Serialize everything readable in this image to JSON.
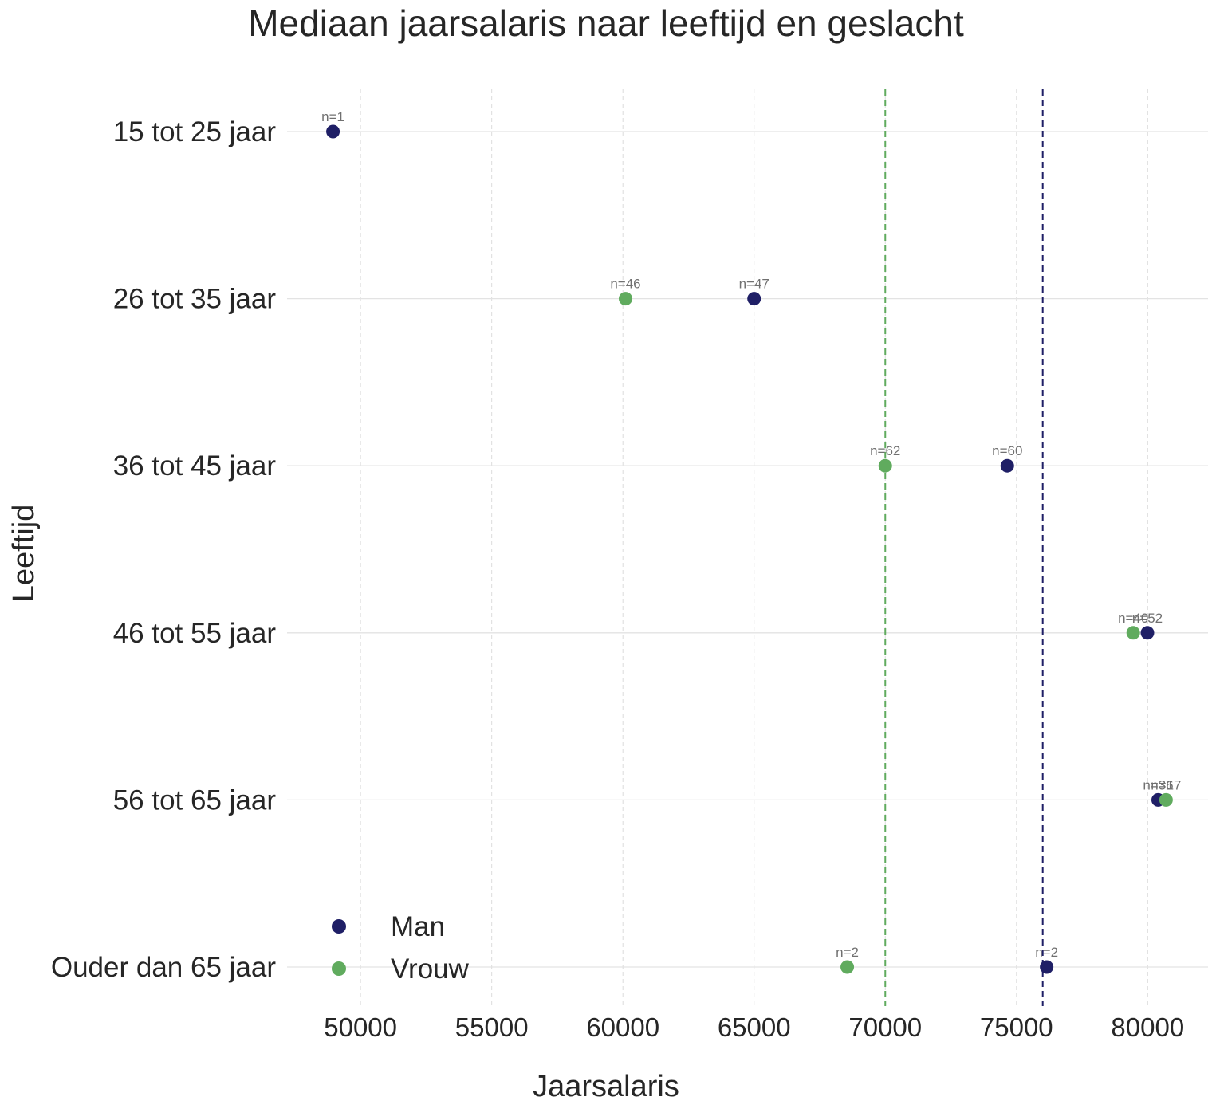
{
  "chart_data": {
    "type": "scatter",
    "title": "Mediaan jaarsalaris naar leeftijd en geslacht",
    "xlabel": "Jaarsalaris",
    "ylabel": "Leeftijd",
    "categories": [
      "15 tot 25 jaar",
      "26 tot 35 jaar",
      "36 tot 45 jaar",
      "46 tot 55 jaar",
      "56 tot 65 jaar",
      "Ouder dan 65 jaar"
    ],
    "x_ticks": [
      "50000",
      "55000",
      "60000",
      "65000",
      "70000",
      "75000",
      "80000"
    ],
    "xlim": [
      47200,
      82300
    ],
    "grid": true,
    "legend_position": "bottom-left",
    "series": [
      {
        "name": "Man",
        "color": "#1f1f66",
        "values": [
          48950,
          65000,
          74650,
          79990,
          80400,
          76150
        ],
        "n_labels": [
          "n=1",
          "n=47",
          "n=60",
          "n=52",
          "n=36",
          "n=2"
        ],
        "median_line": 76000
      },
      {
        "name": "Vrouw",
        "color": "#60ab5e",
        "values": [
          null,
          60100,
          70000,
          79450,
          80700,
          68550
        ],
        "n_labels": [
          null,
          "n=46",
          "n=62",
          "n=40",
          "n=17",
          "n=2"
        ],
        "median_line": 70000
      }
    ]
  }
}
